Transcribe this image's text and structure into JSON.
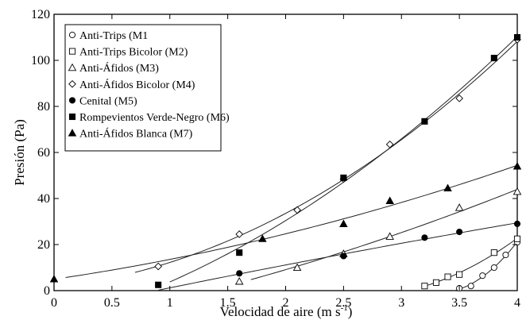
{
  "chart_data": {
    "type": "scatter",
    "title": "",
    "xlabel": "Velocidad de aire (m s",
    "xlabel_sup": "-1",
    "xlabel_close": ")",
    "ylabel": "Presión (Pa)",
    "xlim": [
      0,
      4
    ],
    "ylim": [
      0,
      120
    ],
    "x_ticks": [
      0,
      0.5,
      1,
      1.5,
      2,
      2.5,
      3,
      3.5,
      4
    ],
    "x_tick_labels": [
      "0",
      "0.5",
      "1",
      "1.5",
      "2",
      "2.5",
      "3",
      "3.5",
      "4"
    ],
    "y_ticks": [
      0,
      20,
      40,
      60,
      80,
      100,
      120
    ],
    "y_tick_labels": [
      "0",
      "20",
      "40",
      "60",
      "80",
      "100",
      "120"
    ],
    "grid": false,
    "legend_position": "top-left",
    "series": [
      {
        "name": "Anti-Trips (M1",
        "marker": "circle-open",
        "x": [
          3.5,
          3.6,
          3.7,
          3.8,
          3.9,
          4.0
        ],
        "y": [
          1,
          2,
          6.5,
          10,
          15.5,
          21
        ],
        "fit_x": [
          3.45,
          4.0
        ],
        "fit_coef": [
          0,
          0,
          0
        ]
      },
      {
        "name": "Anti-Trips Bicolor (M2)",
        "marker": "square-open",
        "x": [
          3.2,
          3.3,
          3.4,
          3.5,
          3.8,
          4.0
        ],
        "y": [
          2,
          3.5,
          6,
          7,
          16.5,
          22.5
        ],
        "fit_x": [
          3.2,
          4.0
        ],
        "fit_coef": [
          0,
          0,
          0
        ]
      },
      {
        "name": "Anti-Áfidos (M3)",
        "marker": "triangle-open",
        "x": [
          1.6,
          2.1,
          2.5,
          2.9,
          3.5,
          4.0
        ],
        "y": [
          4,
          10,
          16,
          23.5,
          36,
          43
        ],
        "fit_x": [
          1.7,
          4.0
        ],
        "fit_coef": [
          0,
          0,
          0
        ]
      },
      {
        "name": "Anti-Áfidos Bicolor (M4)",
        "marker": "diamond-open",
        "x": [
          0.9,
          1.6,
          2.1,
          2.5,
          2.9,
          3.5,
          4.0
        ],
        "y": [
          10.5,
          24.5,
          35,
          48.5,
          63.5,
          83.5,
          109
        ],
        "fit_x": [
          0.7,
          4.0
        ],
        "fit_coef": [
          0,
          0,
          0
        ]
      },
      {
        "name": "Cenital (M5)",
        "marker": "circle-filled",
        "x": [
          1.6,
          2.5,
          3.2,
          3.5,
          4.0
        ],
        "y": [
          7.5,
          15,
          23,
          25.5,
          29
        ],
        "fit_x": [
          0.9,
          4.0
        ],
        "fit_coef": [
          0,
          0,
          0
        ]
      },
      {
        "name": "Rompevientos Verde-Negro (M6)",
        "marker": "square-filled",
        "x": [
          0.9,
          1.6,
          2.5,
          3.2,
          3.8,
          4.0
        ],
        "y": [
          2.5,
          16.5,
          49,
          73.5,
          101,
          110
        ],
        "fit_x": [
          1.0,
          4.0
        ],
        "fit_coef": [
          0,
          0,
          0
        ]
      },
      {
        "name": "Anti-Áfidos Blanca (M7)",
        "marker": "triangle-filled",
        "x": [
          0,
          1.8,
          2.5,
          2.9,
          3.4,
          4.0
        ],
        "y": [
          5,
          22.5,
          29,
          39,
          44.5,
          54
        ],
        "fit_x": [
          0.1,
          4.0
        ],
        "fit_coef": [
          0,
          0,
          0
        ]
      }
    ]
  }
}
